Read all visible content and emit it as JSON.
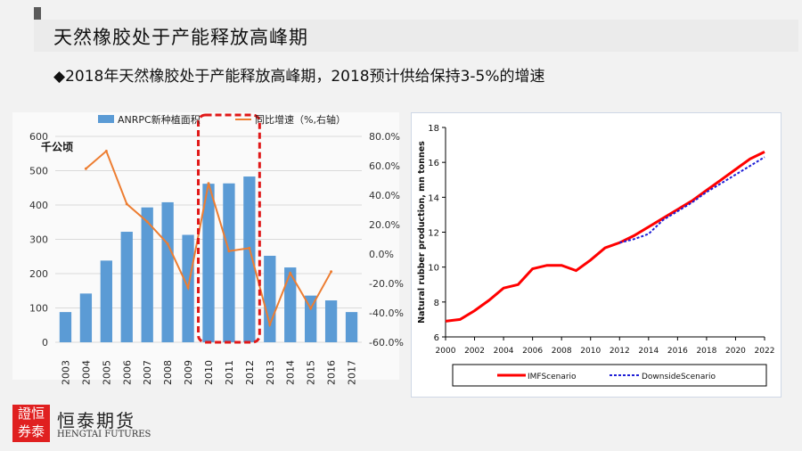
{
  "header": {
    "title": "天然橡胶处于产能释放高峰期",
    "subtitle_bullet": "◆",
    "subtitle": "2018年天然橡胶处于产能释放高峰期，2018预计供给保持3-5%的增速"
  },
  "logo": {
    "box_text": "證恒券泰",
    "name_cn": "恒泰期货",
    "name_en": "HENGTAI FUTURES"
  },
  "colors": {
    "bar": "#5b9bd5",
    "growth_line": "#ed7d31",
    "highlight": "#e01818",
    "imf": "#ff0000",
    "downside": "#1f1fd6"
  },
  "chart_data": [
    {
      "type": "bar",
      "y_unit_label": "千公顷",
      "categories": [
        "2003",
        "2004",
        "2005",
        "2006",
        "2007",
        "2008",
        "2009",
        "2010",
        "2011",
        "2012",
        "2013",
        "2014",
        "2015",
        "2016",
        "2017"
      ],
      "ylim": [
        0,
        600
      ],
      "yticks": [
        "0",
        "100",
        "200",
        "300",
        "400",
        "500",
        "600"
      ],
      "y2lim": [
        -60,
        80
      ],
      "y2ticks": [
        "-60.0%",
        "-40.0%",
        "-20.0%",
        "0.0%",
        "20.0%",
        "40.0%",
        "60.0%",
        "80.0%"
      ],
      "series": [
        {
          "name": "ANRPC新种植面积",
          "type": "bar",
          "values": [
            88,
            142,
            238,
            322,
            393,
            408,
            313,
            462,
            463,
            483,
            252,
            218,
            136,
            122,
            88
          ]
        },
        {
          "name": "同比增速（%,右轴）",
          "type": "line",
          "values": [
            null,
            58,
            70,
            34,
            22,
            7,
            -23,
            48,
            2,
            4,
            -48,
            -13,
            -37,
            -12,
            null
          ]
        }
      ],
      "highlight_range": [
        "2010",
        "2012"
      ],
      "legend_position": "top"
    },
    {
      "type": "line",
      "ylabel": "Natural rubber production, mn tonnes",
      "xlim": [
        2000,
        2022
      ],
      "ylim": [
        6,
        18
      ],
      "xticks": [
        "2000",
        "2002",
        "2004",
        "2006",
        "2008",
        "2010",
        "2012",
        "2014",
        "2016",
        "2018",
        "2020",
        "2022"
      ],
      "yticks": [
        "6",
        "8",
        "10",
        "12",
        "14",
        "16",
        "18"
      ],
      "series": [
        {
          "name": "IMFScenario",
          "x": [
            2000,
            2001,
            2002,
            2003,
            2004,
            2005,
            2006,
            2007,
            2008,
            2009,
            2010,
            2011,
            2012,
            2013,
            2014,
            2015,
            2016,
            2017,
            2018,
            2019,
            2020,
            2021,
            2022
          ],
          "values": [
            6.9,
            7.0,
            7.5,
            8.1,
            8.8,
            9.0,
            9.9,
            10.1,
            10.1,
            9.8,
            10.4,
            11.1,
            11.4,
            11.8,
            12.3,
            12.8,
            13.3,
            13.8,
            14.4,
            15.0,
            15.6,
            16.2,
            16.6
          ]
        },
        {
          "name": "DownsideScenario",
          "x": [
            2012,
            2013,
            2014,
            2015,
            2016,
            2017,
            2018,
            2019,
            2020,
            2021,
            2022
          ],
          "values": [
            11.4,
            11.6,
            11.9,
            12.7,
            13.2,
            13.7,
            14.3,
            14.8,
            15.3,
            15.8,
            16.3
          ]
        }
      ],
      "legend_position": "bottom"
    }
  ]
}
